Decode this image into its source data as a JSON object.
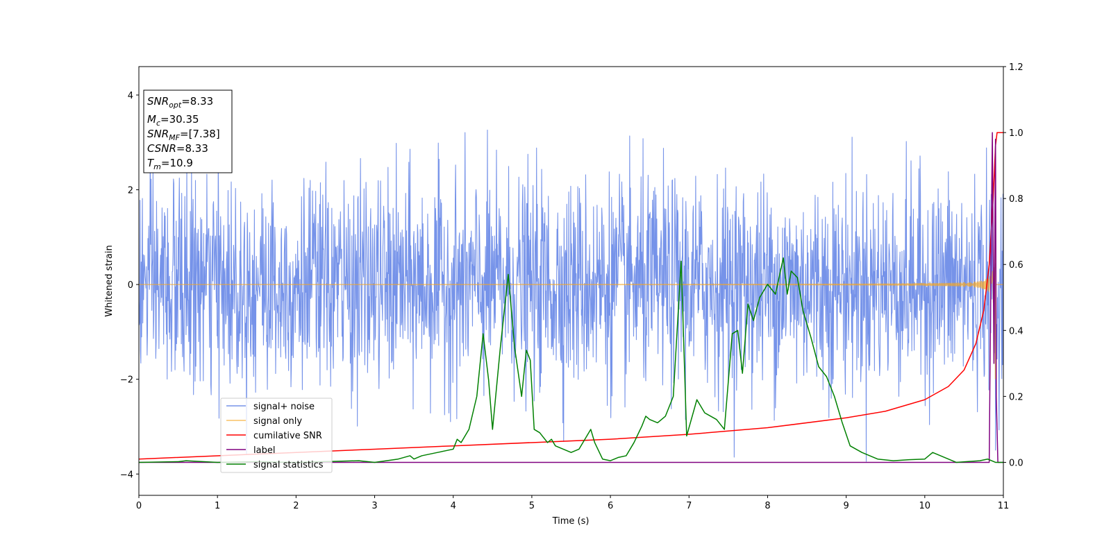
{
  "chart_data": {
    "type": "line",
    "xlabel": "Time (s)",
    "ylabel": "Whitened strain",
    "xlim": [
      0,
      11
    ],
    "ylim": [
      -4.45,
      4.6
    ],
    "y2lim": [
      -0.1,
      1.2
    ],
    "xticks": [
      0,
      1,
      2,
      3,
      4,
      5,
      6,
      7,
      8,
      9,
      10,
      11
    ],
    "yticks": [
      -4,
      -2,
      0,
      2,
      4
    ],
    "y2ticks": [
      0.0,
      0.2,
      0.4,
      0.6,
      0.8,
      1.0,
      1.2
    ],
    "grid": false,
    "legend_position": "lower-left",
    "info_box": {
      "snr_opt": {
        "base": "SNR",
        "sub": "opt",
        "value": "=8.33"
      },
      "mc": {
        "base": "M",
        "sub": "c",
        "value": "=30.35"
      },
      "snr_mf": {
        "base": "SNR",
        "sub": "MF",
        "value": "=[7.38]"
      },
      "csnr": {
        "base": "CSNR",
        "sub": "",
        "value": "=8.33"
      },
      "tm": {
        "base": "T",
        "sub": "m",
        "value": "=10.9"
      }
    },
    "series": [
      {
        "name": "signal+ noise",
        "color": "#4169e1",
        "opacity": 0.72,
        "axis": "left",
        "generator": "noise",
        "std": 1.1,
        "x_range": [
          0,
          11
        ],
        "n_points": 2200,
        "merger_time": 10.9
      },
      {
        "name": "signal only",
        "color": "#f5a623",
        "opacity": 0.7,
        "axis": "left",
        "generator": "chirp",
        "x_range": [
          0,
          11
        ],
        "merger_time": 10.9
      },
      {
        "name": "cumilative SNR",
        "color": "#ff0000",
        "axis": "right",
        "x": [
          0,
          1,
          2,
          3,
          4,
          5,
          6,
          7,
          8,
          9,
          9.5,
          10,
          10.3,
          10.5,
          10.65,
          10.75,
          10.82,
          10.87,
          10.9,
          10.92,
          11
        ],
        "y": [
          0.01,
          0.02,
          0.03,
          0.04,
          0.05,
          0.06,
          0.07,
          0.085,
          0.105,
          0.135,
          0.155,
          0.19,
          0.23,
          0.28,
          0.36,
          0.46,
          0.6,
          0.8,
          0.96,
          1.0,
          1.0
        ]
      },
      {
        "name": "label",
        "color": "#800080",
        "axis": "right",
        "x": [
          0,
          10.82,
          10.84,
          10.86,
          10.88,
          10.9,
          10.91,
          10.93,
          11
        ],
        "y": [
          0.0,
          0.0,
          0.55,
          1.0,
          0.3,
          0.98,
          0.2,
          0.0,
          0.0
        ]
      },
      {
        "name": "signal statistics",
        "color": "#008000",
        "axis": "right",
        "x": [
          0,
          0.5,
          0.6,
          1,
          1.5,
          2,
          2.5,
          2.8,
          3,
          3.3,
          3.45,
          3.5,
          3.6,
          3.8,
          4,
          4.05,
          4.1,
          4.2,
          4.3,
          4.38,
          4.45,
          4.5,
          4.6,
          4.7,
          4.78,
          4.87,
          4.93,
          4.98,
          5.03,
          5.1,
          5.2,
          5.25,
          5.3,
          5.4,
          5.5,
          5.6,
          5.75,
          5.8,
          5.9,
          6.0,
          6.1,
          6.2,
          6.3,
          6.4,
          6.45,
          6.5,
          6.6,
          6.7,
          6.8,
          6.9,
          6.97,
          7.1,
          7.2,
          7.35,
          7.45,
          7.55,
          7.62,
          7.68,
          7.75,
          7.82,
          7.9,
          8.0,
          8.1,
          8.2,
          8.25,
          8.3,
          8.38,
          8.45,
          8.55,
          8.65,
          8.75,
          8.85,
          8.95,
          9.05,
          9.2,
          9.4,
          9.6,
          9.8,
          10.0,
          10.1,
          10.2,
          10.4,
          10.7,
          10.8,
          10.9,
          11
        ],
        "y": [
          0.0,
          0.002,
          0.005,
          0.0,
          0.002,
          0.0,
          0.003,
          0.005,
          0.0,
          0.01,
          0.02,
          0.01,
          0.02,
          0.03,
          0.04,
          0.07,
          0.06,
          0.1,
          0.2,
          0.39,
          0.25,
          0.1,
          0.35,
          0.57,
          0.35,
          0.2,
          0.34,
          0.31,
          0.1,
          0.09,
          0.06,
          0.07,
          0.05,
          0.04,
          0.03,
          0.04,
          0.1,
          0.06,
          0.01,
          0.005,
          0.015,
          0.02,
          0.06,
          0.11,
          0.14,
          0.13,
          0.12,
          0.14,
          0.2,
          0.61,
          0.08,
          0.19,
          0.15,
          0.13,
          0.1,
          0.39,
          0.4,
          0.27,
          0.48,
          0.43,
          0.5,
          0.54,
          0.51,
          0.62,
          0.51,
          0.58,
          0.56,
          0.46,
          0.38,
          0.29,
          0.26,
          0.2,
          0.12,
          0.05,
          0.03,
          0.01,
          0.005,
          0.008,
          0.01,
          0.03,
          0.02,
          0.0,
          0.005,
          0.01,
          0.0,
          0.0
        ]
      }
    ]
  }
}
